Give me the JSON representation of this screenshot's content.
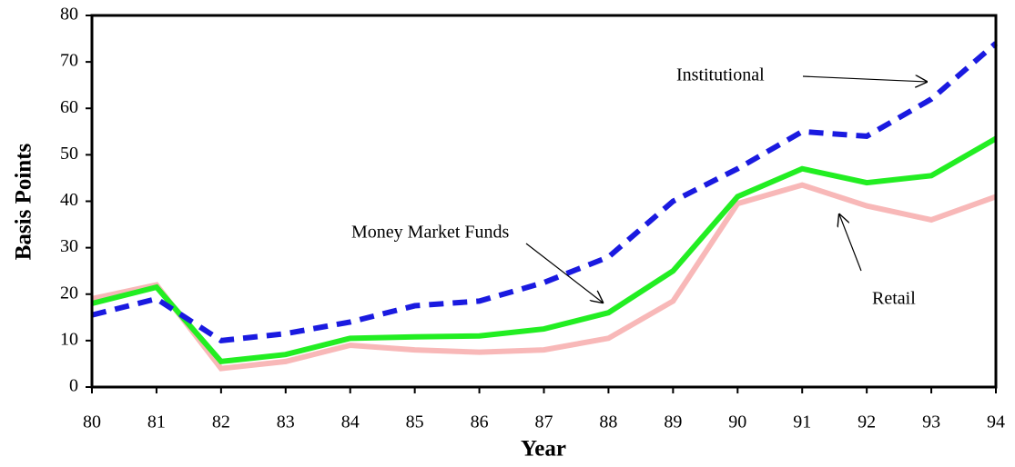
{
  "chart_data": {
    "type": "line",
    "x_label": "Year",
    "y_label": "Basis Points",
    "categories": [
      "80",
      "81",
      "82",
      "83",
      "84",
      "85",
      "86",
      "87",
      "88",
      "89",
      "90",
      "91",
      "92",
      "93",
      "94"
    ],
    "series": [
      {
        "name": "Retail",
        "color": "#f8b8b8",
        "dashed": false,
        "values": [
          19,
          22,
          4,
          5.5,
          9,
          8,
          7.5,
          8,
          10.5,
          18.5,
          39.5,
          43.5,
          39,
          36,
          41
        ]
      },
      {
        "name": "Money Market Funds",
        "color": "#22ee22",
        "dashed": false,
        "values": [
          18,
          21.5,
          5.5,
          7,
          10.5,
          10.8,
          11,
          12.5,
          16,
          25,
          41,
          47,
          44,
          45.5,
          53.5
        ]
      },
      {
        "name": "Institutional",
        "color": "#1a1ae0",
        "dashed": true,
        "values": [
          15.5,
          19,
          10,
          11.5,
          14,
          17.5,
          18.5,
          22.5,
          28,
          40,
          47,
          55,
          54,
          62,
          74
        ]
      }
    ],
    "ylim": [
      0,
      80
    ],
    "yticks": [
      0,
      10,
      20,
      30,
      40,
      50,
      60,
      70,
      80
    ],
    "grid": false
  }
}
